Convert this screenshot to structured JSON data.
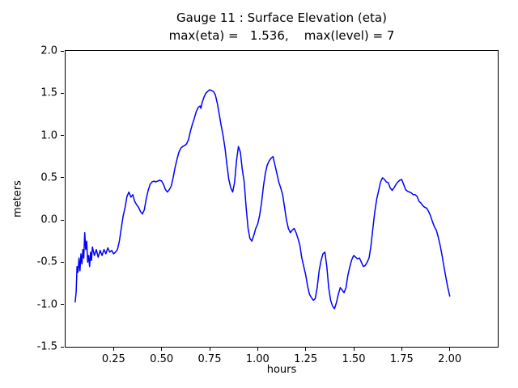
{
  "chart_data": {
    "type": "line",
    "title": "Gauge 11 : Surface Elevation (eta)",
    "subtitle": "max(eta) =   1.536,    max(level) = 7",
    "xlabel": "hours",
    "ylabel": "meters",
    "xlim": [
      0.0,
      2.25
    ],
    "ylim": [
      -1.5,
      2.0
    ],
    "grid": false,
    "legend": "none",
    "line_color": "#0000ff",
    "max_eta": 1.536,
    "max_level": 7,
    "xticks": [
      0.25,
      0.5,
      0.75,
      1.0,
      1.25,
      1.5,
      1.75,
      2.0
    ],
    "xtick_labels": [
      "0.25",
      "0.50",
      "0.75",
      "1.00",
      "1.25",
      "1.50",
      "1.75",
      "2.00"
    ],
    "yticks": [
      -1.5,
      -1.0,
      -0.5,
      0.0,
      0.5,
      1.0,
      1.5,
      2.0
    ],
    "ytick_labels": [
      "-1.5",
      "-1.0",
      "-0.5",
      "0.0",
      "0.5",
      "1.0",
      "1.5",
      "2.0"
    ],
    "series": [
      {
        "name": "eta",
        "x": [
          0.05,
          0.055,
          0.06,
          0.065,
          0.07,
          0.075,
          0.08,
          0.085,
          0.09,
          0.095,
          0.1,
          0.105,
          0.11,
          0.115,
          0.12,
          0.125,
          0.13,
          0.135,
          0.14,
          0.15,
          0.16,
          0.17,
          0.18,
          0.19,
          0.2,
          0.21,
          0.22,
          0.23,
          0.24,
          0.25,
          0.26,
          0.27,
          0.28,
          0.29,
          0.3,
          0.31,
          0.32,
          0.33,
          0.34,
          0.35,
          0.36,
          0.37,
          0.38,
          0.39,
          0.4,
          0.41,
          0.42,
          0.43,
          0.44,
          0.45,
          0.46,
          0.47,
          0.48,
          0.49,
          0.5,
          0.51,
          0.52,
          0.53,
          0.54,
          0.55,
          0.56,
          0.57,
          0.58,
          0.59,
          0.6,
          0.61,
          0.62,
          0.63,
          0.64,
          0.65,
          0.66,
          0.67,
          0.68,
          0.69,
          0.7,
          0.705,
          0.71,
          0.72,
          0.73,
          0.74,
          0.75,
          0.76,
          0.77,
          0.78,
          0.79,
          0.8,
          0.81,
          0.82,
          0.83,
          0.84,
          0.85,
          0.86,
          0.87,
          0.88,
          0.89,
          0.9,
          0.91,
          0.92,
          0.93,
          0.94,
          0.95,
          0.96,
          0.97,
          0.98,
          0.99,
          1.0,
          1.01,
          1.02,
          1.03,
          1.04,
          1.05,
          1.06,
          1.07,
          1.08,
          1.09,
          1.1,
          1.11,
          1.12,
          1.13,
          1.14,
          1.15,
          1.16,
          1.17,
          1.18,
          1.19,
          1.2,
          1.21,
          1.22,
          1.23,
          1.24,
          1.25,
          1.26,
          1.27,
          1.28,
          1.29,
          1.3,
          1.31,
          1.32,
          1.33,
          1.34,
          1.35,
          1.36,
          1.37,
          1.38,
          1.39,
          1.4,
          1.41,
          1.42,
          1.43,
          1.44,
          1.45,
          1.46,
          1.47,
          1.48,
          1.49,
          1.5,
          1.51,
          1.52,
          1.53,
          1.54,
          1.55,
          1.56,
          1.57,
          1.58,
          1.59,
          1.6,
          1.61,
          1.62,
          1.63,
          1.64,
          1.65,
          1.66,
          1.67,
          1.68,
          1.69,
          1.7,
          1.71,
          1.72,
          1.73,
          1.74,
          1.75,
          1.76,
          1.77,
          1.78,
          1.79,
          1.8,
          1.81,
          1.82,
          1.83,
          1.84,
          1.85,
          1.86,
          1.87,
          1.88,
          1.89,
          1.9,
          1.91,
          1.92,
          1.93,
          1.94,
          1.95,
          1.96,
          1.97,
          1.98,
          1.99,
          2.0
        ],
        "y": [
          -0.97,
          -0.85,
          -0.55,
          -0.62,
          -0.45,
          -0.6,
          -0.4,
          -0.52,
          -0.35,
          -0.45,
          -0.15,
          -0.35,
          -0.25,
          -0.5,
          -0.42,
          -0.55,
          -0.38,
          -0.48,
          -0.32,
          -0.42,
          -0.35,
          -0.44,
          -0.36,
          -0.42,
          -0.35,
          -0.4,
          -0.33,
          -0.38,
          -0.36,
          -0.4,
          -0.38,
          -0.35,
          -0.25,
          -0.1,
          0.05,
          0.15,
          0.28,
          0.33,
          0.27,
          0.3,
          0.22,
          0.18,
          0.15,
          0.1,
          0.07,
          0.12,
          0.25,
          0.35,
          0.42,
          0.45,
          0.46,
          0.45,
          0.46,
          0.47,
          0.46,
          0.42,
          0.36,
          0.33,
          0.36,
          0.4,
          0.5,
          0.62,
          0.72,
          0.8,
          0.85,
          0.87,
          0.88,
          0.9,
          0.95,
          1.05,
          1.13,
          1.2,
          1.28,
          1.33,
          1.35,
          1.32,
          1.38,
          1.45,
          1.5,
          1.52,
          1.54,
          1.53,
          1.52,
          1.48,
          1.38,
          1.25,
          1.12,
          1.0,
          0.85,
          0.65,
          0.48,
          0.38,
          0.33,
          0.45,
          0.7,
          0.87,
          0.8,
          0.6,
          0.45,
          0.15,
          -0.1,
          -0.22,
          -0.25,
          -0.18,
          -0.1,
          -0.05,
          0.05,
          0.2,
          0.4,
          0.55,
          0.65,
          0.7,
          0.73,
          0.75,
          0.65,
          0.55,
          0.45,
          0.38,
          0.3,
          0.15,
          0.0,
          -0.1,
          -0.15,
          -0.12,
          -0.1,
          -0.15,
          -0.22,
          -0.3,
          -0.45,
          -0.55,
          -0.65,
          -0.78,
          -0.88,
          -0.92,
          -0.95,
          -0.93,
          -0.8,
          -0.6,
          -0.48,
          -0.4,
          -0.38,
          -0.55,
          -0.8,
          -0.95,
          -1.02,
          -1.05,
          -0.98,
          -0.88,
          -0.8,
          -0.83,
          -0.86,
          -0.8,
          -0.65,
          -0.55,
          -0.47,
          -0.42,
          -0.44,
          -0.46,
          -0.45,
          -0.5,
          -0.55,
          -0.54,
          -0.5,
          -0.45,
          -0.3,
          -0.1,
          0.1,
          0.25,
          0.35,
          0.45,
          0.5,
          0.48,
          0.45,
          0.44,
          0.38,
          0.35,
          0.38,
          0.42,
          0.45,
          0.47,
          0.48,
          0.42,
          0.36,
          0.34,
          0.33,
          0.32,
          0.3,
          0.3,
          0.28,
          0.22,
          0.2,
          0.17,
          0.15,
          0.14,
          0.1,
          0.05,
          -0.02,
          -0.08,
          -0.12,
          -0.2,
          -0.3,
          -0.42,
          -0.55,
          -0.68,
          -0.8,
          -0.9
        ]
      }
    ]
  }
}
